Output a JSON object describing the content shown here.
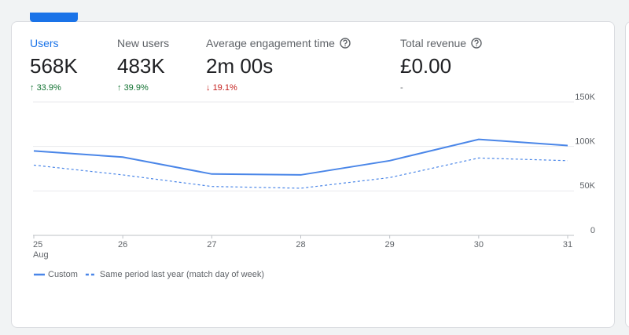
{
  "metrics": [
    {
      "label": "Users",
      "value": "568K",
      "change": "33.9%",
      "direction": "up",
      "selected": true,
      "help": false
    },
    {
      "label": "New users",
      "value": "483K",
      "change": "39.9%",
      "direction": "up",
      "selected": false,
      "help": false
    },
    {
      "label": "Average engagement time",
      "value": "2m 00s",
      "change": "19.1%",
      "direction": "down",
      "selected": false,
      "help": true
    },
    {
      "label": "Total revenue",
      "value": "£0.00",
      "change": "-",
      "direction": null,
      "selected": false,
      "help": true
    }
  ],
  "chart_data": {
    "type": "line",
    "categories": [
      "25",
      "26",
      "27",
      "28",
      "29",
      "30",
      "31"
    ],
    "month_label": "Aug",
    "series": [
      {
        "name": "Custom",
        "color": "#4a86e8",
        "dashed": false,
        "values": [
          95000,
          88000,
          69000,
          68000,
          84000,
          108000,
          101000
        ]
      },
      {
        "name": "Same period last year (match day of week)",
        "color": "#4a86e8",
        "dashed": true,
        "values": [
          79000,
          68000,
          55000,
          53000,
          65000,
          87000,
          84000
        ]
      }
    ],
    "ylim": [
      0,
      150000
    ],
    "yticks": [
      0,
      {
        "value": 50000,
        "label": "50K"
      },
      {
        "value": 100000,
        "label": "100K"
      },
      {
        "value": 150000,
        "label": "150K"
      }
    ],
    "grid": true
  }
}
